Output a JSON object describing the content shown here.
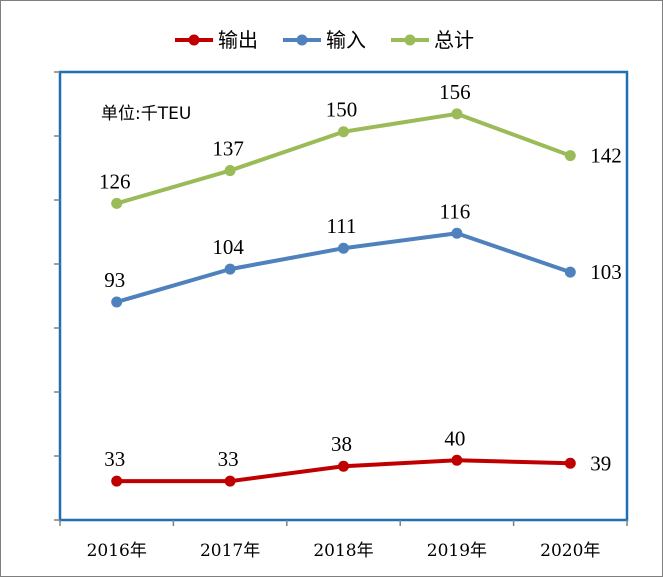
{
  "chart_data": {
    "type": "line",
    "unit_label": "单位:千TEU",
    "categories": [
      "2016年",
      "2017年",
      "2018年",
      "2019年",
      "2020年"
    ],
    "series": [
      {
        "name": "输出",
        "color": "#c00000",
        "values": [
          33,
          33,
          38,
          40,
          39
        ]
      },
      {
        "name": "输入",
        "color": "#4f81bd",
        "values": [
          93,
          104,
          111,
          116,
          103
        ]
      },
      {
        "name": "总计",
        "color": "#9bbb59",
        "values": [
          126,
          137,
          150,
          156,
          142
        ]
      }
    ],
    "legend_position": "top",
    "plot_border_color": "#1f6fb5",
    "ylim": [
      20,
      170
    ],
    "grid": false
  }
}
